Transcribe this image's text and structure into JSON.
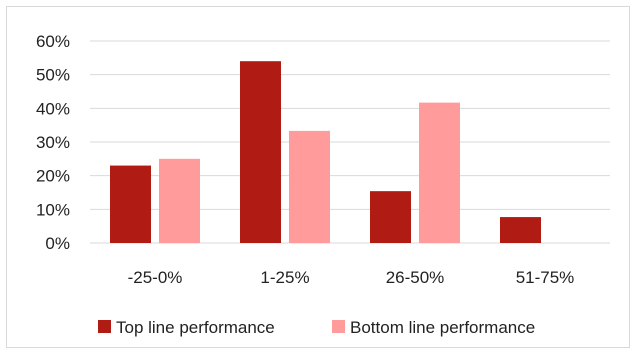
{
  "chart_data": {
    "type": "bar",
    "categories": [
      "-25-0%",
      "1-25%",
      "26-50%",
      "51-75%"
    ],
    "series": [
      {
        "name": "Top line performance",
        "values": [
          23,
          54,
          15.4,
          7.7
        ],
        "color": "#b01c14"
      },
      {
        "name": "Bottom line performance",
        "values": [
          25,
          33.3,
          41.7,
          0
        ],
        "color": "#ff9b9b"
      }
    ],
    "ylim": [
      0,
      60
    ],
    "yticks": [
      "0%",
      "10%",
      "20%",
      "30%",
      "40%",
      "50%",
      "60%"
    ],
    "grid": true,
    "legend_position": "bottom"
  }
}
